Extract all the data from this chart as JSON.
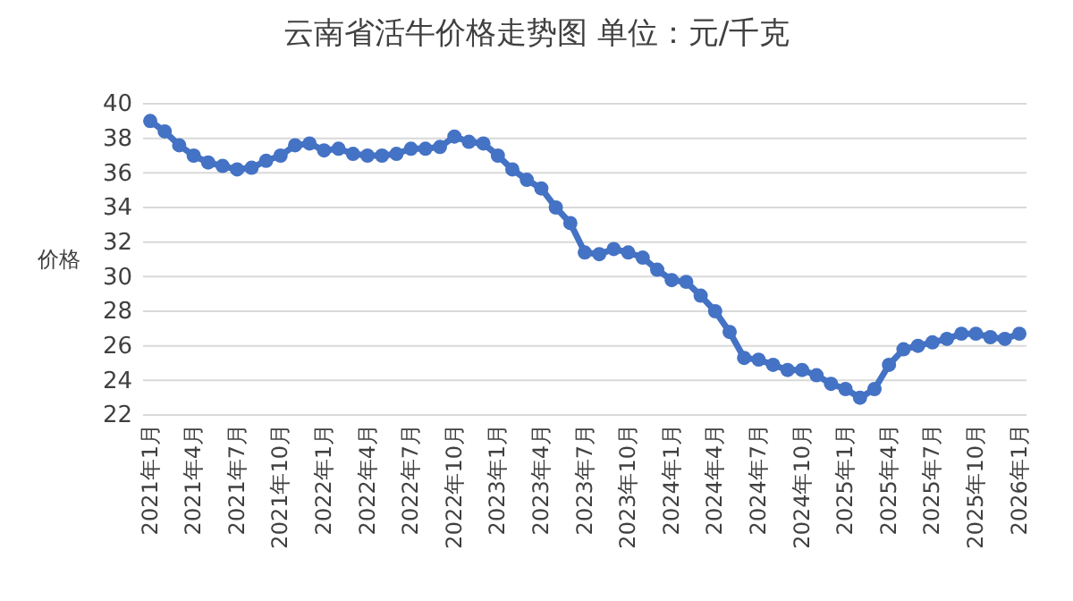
{
  "chart_data": {
    "type": "line",
    "title": "云南省活牛价格走势图    单位：元/千克",
    "ylabel": "价格",
    "categories": [
      "2021年1月",
      null,
      null,
      "2021年4月",
      null,
      null,
      "2021年7月",
      null,
      null,
      "2021年10月",
      null,
      null,
      "2022年1月",
      null,
      null,
      "2022年4月",
      null,
      null,
      "2022年7月",
      null,
      null,
      "2022年10月",
      null,
      null,
      "2023年1月",
      null,
      null,
      "2023年4月",
      null,
      null,
      "2023年7月",
      null,
      null,
      "2023年10月",
      null,
      null,
      "2024年1月",
      null,
      null,
      "2024年4月",
      null,
      null,
      "2024年7月",
      null,
      null,
      "2024年10月",
      null,
      null,
      "2025年1月",
      null,
      null,
      "2025年4月",
      null,
      null,
      "2025年7月",
      null,
      null,
      "2025年10月",
      null,
      null,
      "2026年1月"
    ],
    "series": [
      {
        "color": "#4472c4",
        "values": [
          39.0,
          38.4,
          37.6,
          37.0,
          36.6,
          36.4,
          36.2,
          36.3,
          36.7,
          37.0,
          37.6,
          37.7,
          37.3,
          37.4,
          37.1,
          37.0,
          37.0,
          37.1,
          37.4,
          37.4,
          37.5,
          38.1,
          37.8,
          37.7,
          37.0,
          36.2,
          35.6,
          35.1,
          34.0,
          33.1,
          31.4,
          31.3,
          31.6,
          31.4,
          31.1,
          30.4,
          29.8,
          29.7,
          28.9,
          28.0,
          26.8,
          25.3,
          25.2,
          24.9,
          24.6,
          24.6,
          24.3,
          23.8,
          23.5,
          23.0,
          23.5,
          24.9,
          25.8,
          26.0,
          26.2,
          26.4,
          26.7,
          26.7,
          26.5,
          26.4,
          26.7
        ]
      }
    ],
    "ylim": [
      22,
      40
    ],
    "yticks": [
      22,
      24,
      26,
      28,
      30,
      32,
      34,
      36,
      38,
      40
    ],
    "grid": "y",
    "marker": "circle",
    "line_style": "solid"
  }
}
